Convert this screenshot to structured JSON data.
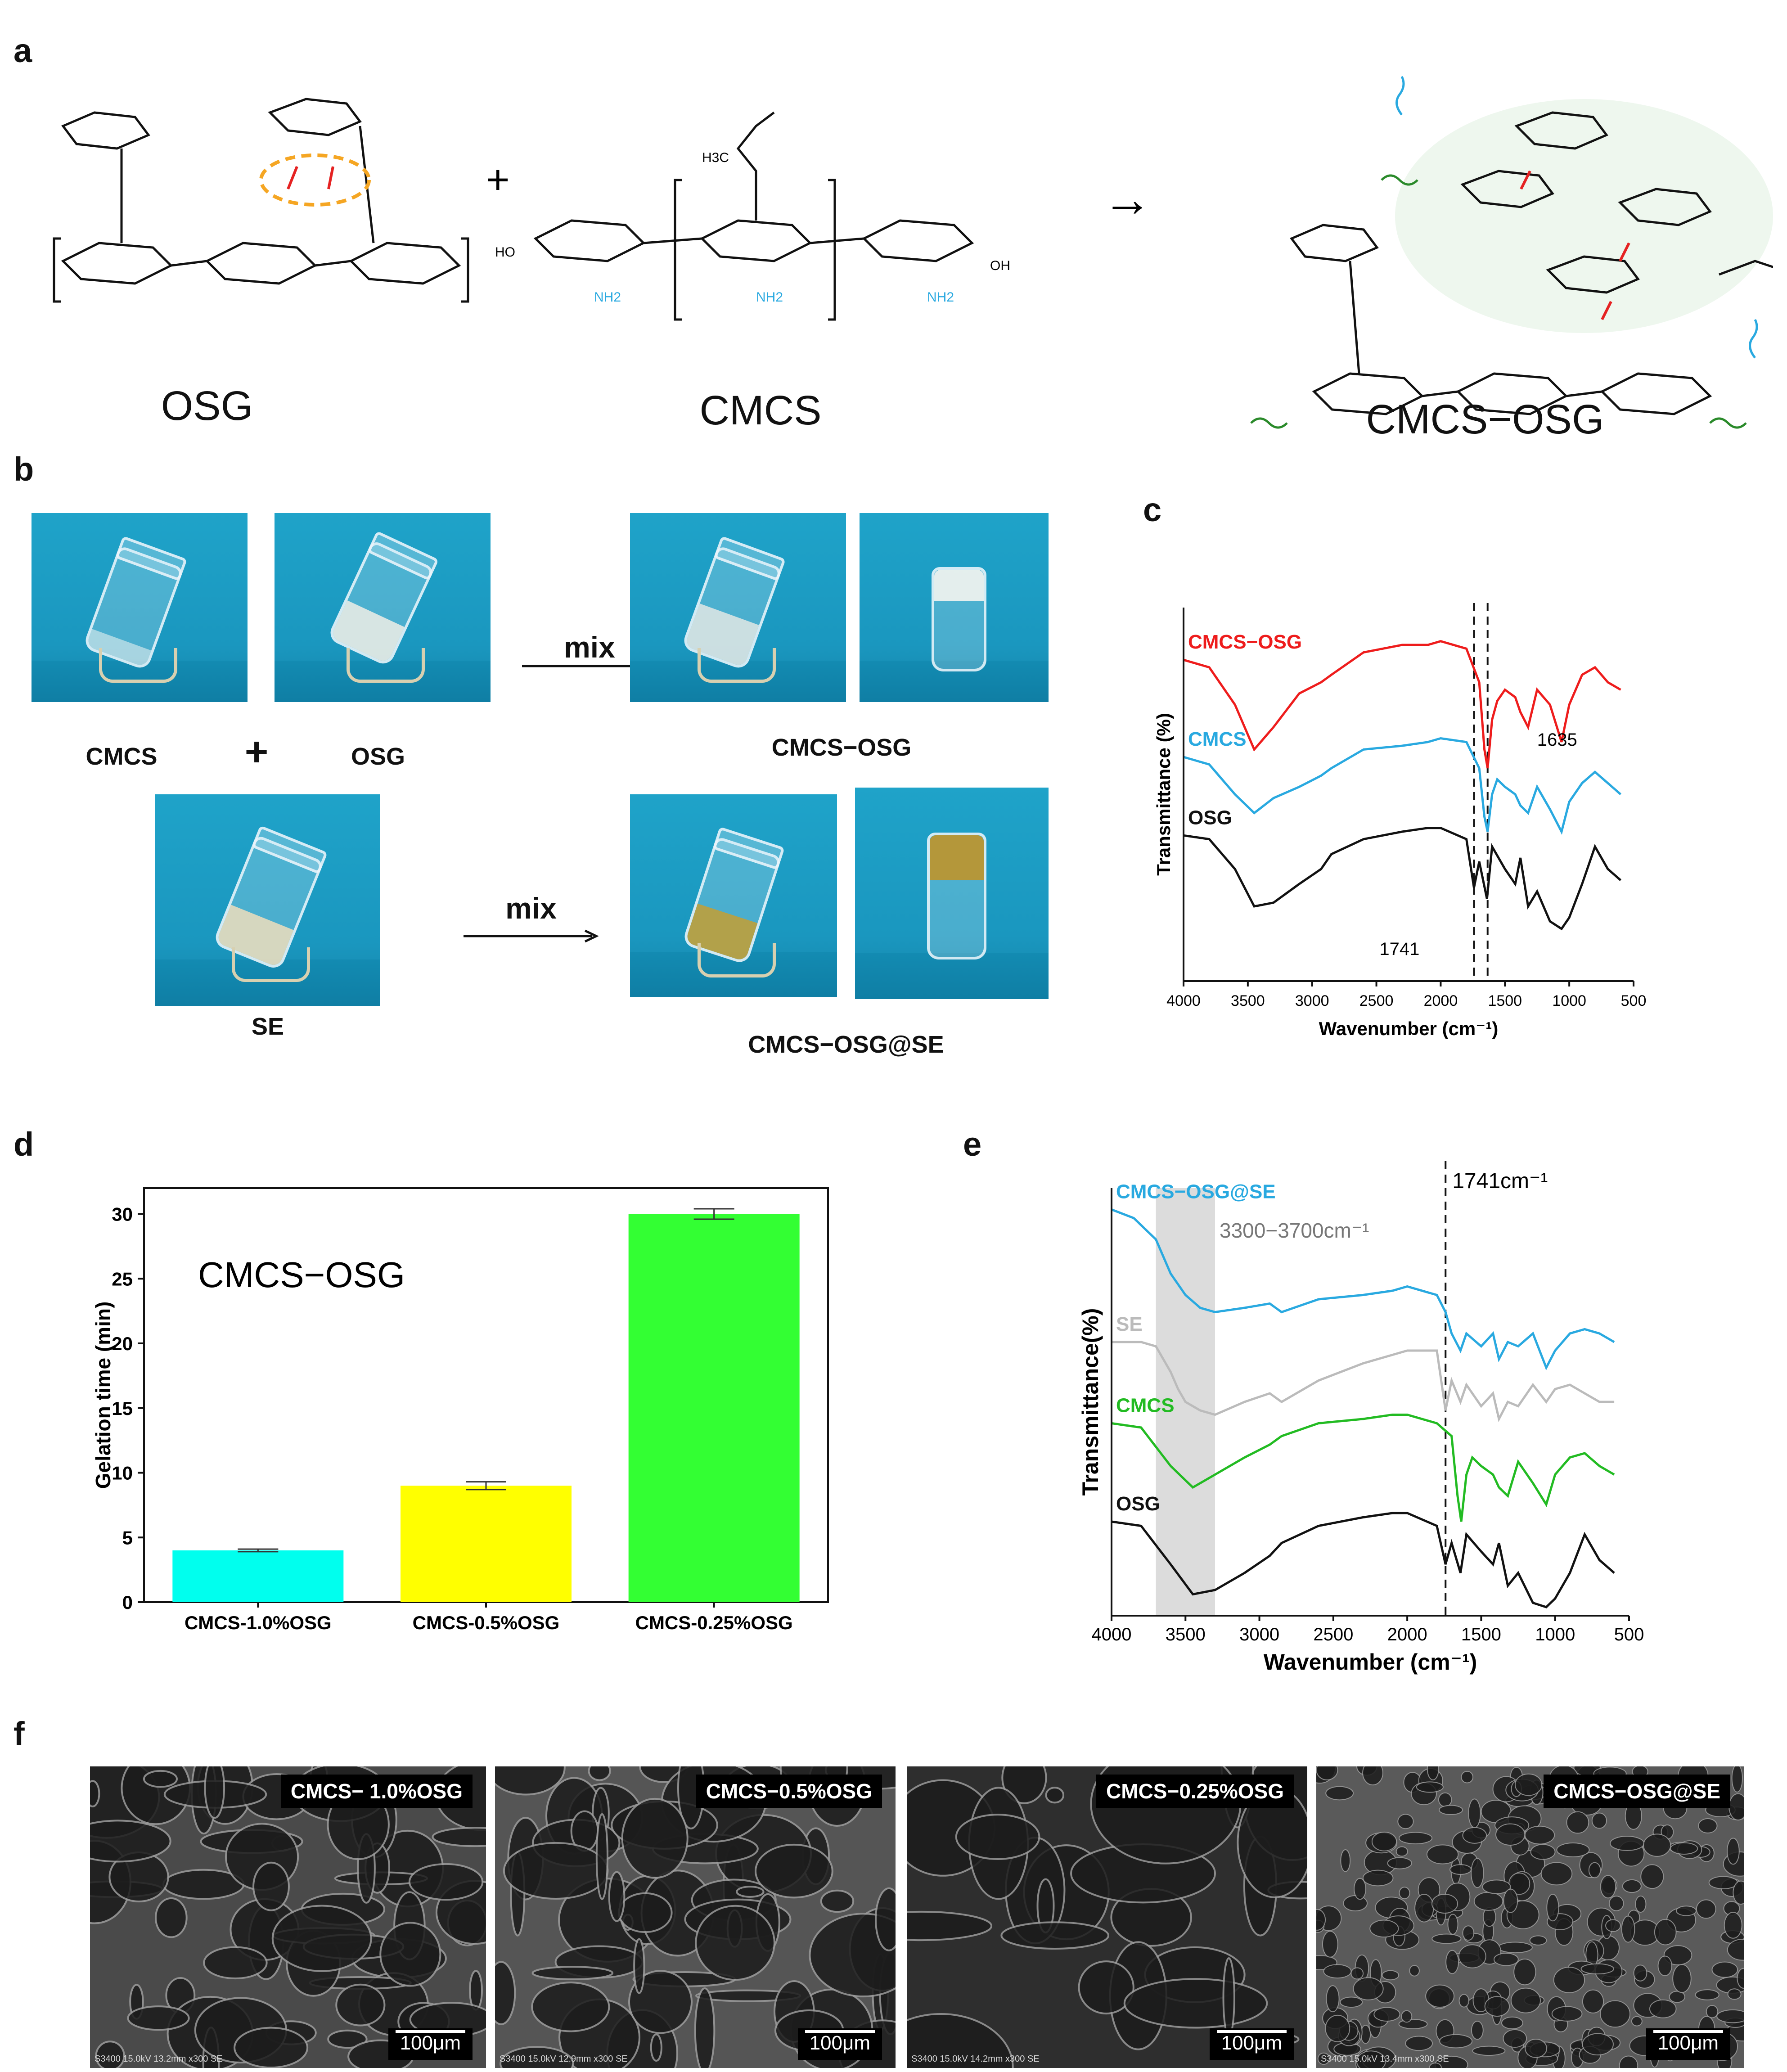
{
  "panels": {
    "a": "a",
    "b": "b",
    "c": "c",
    "d": "d",
    "e": "e",
    "f": "f"
  },
  "panel_a": {
    "osg_name": "OSG",
    "cmcs_name": "CMCS",
    "product_name": "CMCS−OSG",
    "plus": "+",
    "arrow": "→",
    "cmcs_group_labels": [
      "NH2",
      "NH2",
      "NH2"
    ],
    "methyl_label": "H3C",
    "end_labels": [
      "OH",
      "HO"
    ]
  },
  "panel_b": {
    "label_cmcs": "CMCS",
    "label_osg": "OSG",
    "plus": "+",
    "label_se": "SE",
    "mix_top": "mix",
    "mix_bottom": "mix",
    "result_top": "CMCS−OSG",
    "result_bottom": "CMCS−OSG@SE"
  },
  "chart_data": [
    {
      "id": "c",
      "type": "line",
      "xlabel": "Wavenumber (cm⁻¹)",
      "ylabel": "Transmittance (%)",
      "xlim": [
        4000,
        500
      ],
      "xticks": [
        "4000",
        "3500",
        "3000",
        "2500",
        "2000",
        "1500",
        "1000",
        "500"
      ],
      "series": [
        {
          "name": "CMCS−OSG",
          "color": "#ee1c1c",
          "x": [
            4000,
            3800,
            3600,
            3450,
            3300,
            3100,
            2930,
            2850,
            2600,
            2300,
            2100,
            2000,
            1800,
            1700,
            1660,
            1635,
            1600,
            1560,
            1500,
            1420,
            1380,
            1320,
            1250,
            1150,
            1060,
            1000,
            900,
            800,
            700,
            600
          ],
          "y": [
            0.86,
            0.84,
            0.74,
            0.62,
            0.68,
            0.77,
            0.8,
            0.82,
            0.88,
            0.9,
            0.9,
            0.91,
            0.89,
            0.8,
            0.62,
            0.57,
            0.7,
            0.75,
            0.78,
            0.76,
            0.72,
            0.68,
            0.78,
            0.74,
            0.64,
            0.74,
            0.82,
            0.84,
            0.8,
            0.78
          ]
        },
        {
          "name": "CMCS",
          "color": "#29a9e0",
          "x": [
            4000,
            3800,
            3600,
            3450,
            3300,
            3100,
            2930,
            2850,
            2600,
            2300,
            2100,
            2000,
            1800,
            1700,
            1660,
            1635,
            1600,
            1560,
            1500,
            1420,
            1380,
            1320,
            1250,
            1150,
            1060,
            1000,
            900,
            800,
            700,
            600
          ],
          "y": [
            0.6,
            0.58,
            0.5,
            0.45,
            0.49,
            0.52,
            0.55,
            0.57,
            0.62,
            0.63,
            0.64,
            0.65,
            0.64,
            0.57,
            0.44,
            0.4,
            0.5,
            0.54,
            0.52,
            0.5,
            0.47,
            0.45,
            0.52,
            0.46,
            0.4,
            0.48,
            0.53,
            0.56,
            0.53,
            0.5
          ]
        },
        {
          "name": "OSG",
          "color": "#111111",
          "x": [
            4000,
            3800,
            3600,
            3450,
            3300,
            3100,
            2930,
            2850,
            2600,
            2300,
            2100,
            2000,
            1800,
            1741,
            1700,
            1640,
            1600,
            1500,
            1420,
            1380,
            1320,
            1250,
            1150,
            1060,
            1000,
            900,
            800,
            700,
            600
          ],
          "y": [
            0.39,
            0.38,
            0.3,
            0.2,
            0.21,
            0.26,
            0.3,
            0.34,
            0.38,
            0.4,
            0.41,
            0.41,
            0.38,
            0.25,
            0.32,
            0.22,
            0.36,
            0.3,
            0.26,
            0.33,
            0.2,
            0.24,
            0.16,
            0.14,
            0.17,
            0.26,
            0.36,
            0.3,
            0.27
          ]
        }
      ],
      "annotations": [
        {
          "text": "1635",
          "x": 1635
        },
        {
          "text": "1741",
          "x": 1741
        }
      ],
      "dashed_lines": [
        1741,
        1635
      ]
    },
    {
      "id": "d",
      "type": "bar",
      "title": "CMCS−OSG",
      "ylabel": "Gelation time (min)",
      "categories": [
        "CMCS-1.0%OSG",
        "CMCS-0.5%OSG",
        "CMCS-0.25%OSG"
      ],
      "values": [
        4.0,
        9.0,
        30.0
      ],
      "errors": [
        0.1,
        0.3,
        0.4
      ],
      "colors": [
        "#00ffee",
        "#ffff00",
        "#33ff33"
      ],
      "ylim": [
        0,
        32
      ],
      "yticks": [
        "0",
        "5",
        "10",
        "15",
        "20",
        "25",
        "30"
      ]
    },
    {
      "id": "e",
      "type": "line",
      "xlabel": "Wavenumber (cm⁻¹)",
      "ylabel": "Transmittance(%)",
      "xlim": [
        4000,
        500
      ],
      "xticks": [
        "4000",
        "3500",
        "3000",
        "2500",
        "2000",
        "1500",
        "1000",
        "500"
      ],
      "band_label": "3300−3700cm⁻¹",
      "band": [
        3700,
        3300
      ],
      "line_label": "1741cm⁻¹",
      "line_x": 1741,
      "series": [
        {
          "name": "CMCS−OSG@SE",
          "color": "#29a9e0",
          "x": [
            4000,
            3850,
            3700,
            3600,
            3500,
            3400,
            3300,
            3100,
            2930,
            2850,
            2600,
            2300,
            2100,
            2000,
            1800,
            1741,
            1700,
            1640,
            1600,
            1500,
            1420,
            1380,
            1320,
            1250,
            1150,
            1060,
            1000,
            900,
            800,
            700,
            600
          ],
          "y": [
            0.95,
            0.93,
            0.88,
            0.8,
            0.75,
            0.72,
            0.71,
            0.72,
            0.73,
            0.71,
            0.74,
            0.75,
            0.76,
            0.77,
            0.75,
            0.71,
            0.66,
            0.62,
            0.66,
            0.63,
            0.66,
            0.6,
            0.64,
            0.63,
            0.66,
            0.58,
            0.62,
            0.66,
            0.67,
            0.66,
            0.64
          ]
        },
        {
          "name": "SE",
          "color": "#bbbbbb",
          "x": [
            4000,
            3800,
            3700,
            3600,
            3550,
            3500,
            3400,
            3300,
            3100,
            2930,
            2850,
            2600,
            2300,
            2100,
            2000,
            1800,
            1741,
            1700,
            1640,
            1600,
            1500,
            1420,
            1380,
            1320,
            1250,
            1150,
            1060,
            1000,
            900,
            800,
            700,
            600
          ],
          "y": [
            0.64,
            0.64,
            0.63,
            0.57,
            0.53,
            0.5,
            0.48,
            0.47,
            0.5,
            0.52,
            0.5,
            0.55,
            0.59,
            0.61,
            0.62,
            0.62,
            0.48,
            0.55,
            0.5,
            0.54,
            0.49,
            0.52,
            0.46,
            0.5,
            0.49,
            0.54,
            0.5,
            0.53,
            0.54,
            0.52,
            0.5,
            0.5
          ]
        },
        {
          "name": "CMCS",
          "color": "#22bb22",
          "x": [
            4000,
            3800,
            3600,
            3450,
            3300,
            3100,
            2930,
            2850,
            2600,
            2300,
            2100,
            2000,
            1800,
            1700,
            1660,
            1635,
            1600,
            1560,
            1500,
            1420,
            1380,
            1320,
            1250,
            1150,
            1060,
            1000,
            900,
            800,
            700,
            600
          ],
          "y": [
            0.45,
            0.44,
            0.35,
            0.3,
            0.33,
            0.37,
            0.4,
            0.42,
            0.45,
            0.46,
            0.47,
            0.47,
            0.45,
            0.42,
            0.28,
            0.22,
            0.33,
            0.37,
            0.35,
            0.33,
            0.3,
            0.28,
            0.36,
            0.31,
            0.26,
            0.33,
            0.37,
            0.38,
            0.35,
            0.33
          ]
        },
        {
          "name": "OSG",
          "color": "#111111",
          "x": [
            4000,
            3800,
            3600,
            3450,
            3300,
            3100,
            2930,
            2850,
            2600,
            2300,
            2100,
            2000,
            1800,
            1741,
            1700,
            1640,
            1600,
            1500,
            1420,
            1380,
            1320,
            1250,
            1150,
            1060,
            1000,
            900,
            800,
            700,
            600
          ],
          "y": [
            0.22,
            0.21,
            0.12,
            0.05,
            0.06,
            0.1,
            0.14,
            0.17,
            0.21,
            0.23,
            0.24,
            0.24,
            0.21,
            0.12,
            0.17,
            0.1,
            0.19,
            0.15,
            0.12,
            0.17,
            0.07,
            0.1,
            0.03,
            0.02,
            0.04,
            0.1,
            0.19,
            0.13,
            0.1
          ]
        }
      ]
    }
  ],
  "panel_f": [
    {
      "label": "CMCS− 1.0%OSG",
      "meta": "S3400 15.0kV 13.2mm x300 SE",
      "scale": "100μm",
      "tone": "#4a4a4a"
    },
    {
      "label": "CMCS−0.5%OSG",
      "meta": "S3400 15.0kV 12.9mm x300 SE",
      "scale": "100μm",
      "tone": "#555555"
    },
    {
      "label": "CMCS−0.25%OSG",
      "meta": "S3400 15.0kV 14.2mm x300 SE",
      "scale": "100μm",
      "tone": "#2e2e2e"
    },
    {
      "label": "CMCS−OSG@SE",
      "meta": "S3400 15.0kV 13.4mm x300 SE",
      "scale": "100μm",
      "tone": "#5a5a5a"
    }
  ]
}
